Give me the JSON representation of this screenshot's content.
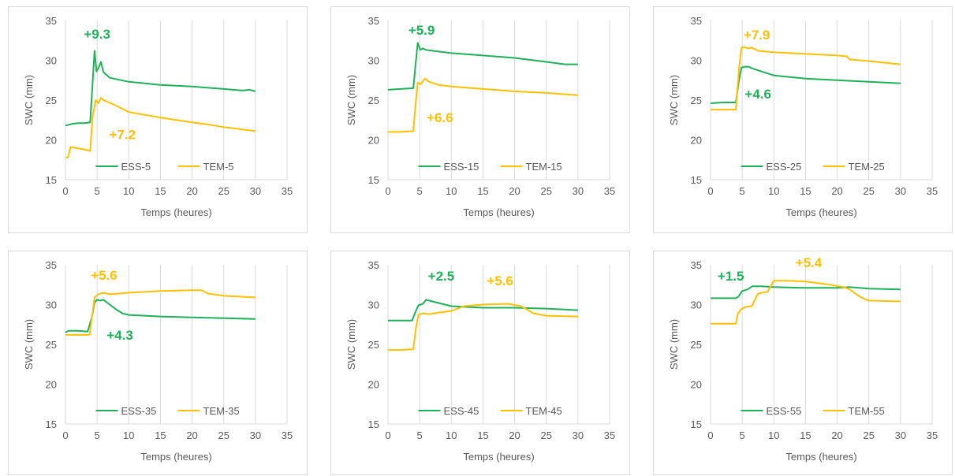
{
  "colors": {
    "ess": "#1fb15a",
    "tem": "#ffc000"
  },
  "chart_data": [
    {
      "type": "line",
      "xlabel": "Temps (heures)",
      "ylabel": "SWC (mm)",
      "xlim": [
        0,
        35
      ],
      "ylim": [
        15,
        35
      ],
      "xticks": [
        "0",
        "5",
        "10",
        "15",
        "20",
        "25",
        "30",
        "35"
      ],
      "yticks": [
        "15",
        "20",
        "25",
        "30",
        "35"
      ],
      "grid": "vertical",
      "legend": "bottom-center",
      "series": [
        {
          "name": "ESS-5",
          "color": "#1fb15a",
          "x": [
            0,
            1,
            2,
            3,
            3.9,
            4.2,
            4.6,
            4.9,
            5.2,
            5.6,
            6,
            7,
            10,
            15,
            20,
            25,
            28,
            29,
            30
          ],
          "y": [
            21.8,
            22,
            22.1,
            22.1,
            22.2,
            26,
            31.2,
            28.6,
            29,
            29.8,
            28.5,
            27.8,
            27.3,
            26.9,
            26.7,
            26.4,
            26.2,
            26.3,
            26.1
          ]
        },
        {
          "name": "TEM-5",
          "color": "#ffc000",
          "x": [
            0,
            0.4,
            0.8,
            1.5,
            3,
            3.9,
            4.3,
            4.8,
            5.2,
            5.6,
            6,
            8,
            10,
            15,
            20,
            22,
            25,
            30
          ],
          "y": [
            17.8,
            17.8,
            19.1,
            19,
            18.8,
            18.6,
            23,
            25,
            24.6,
            25.3,
            25,
            24.3,
            23.5,
            22.8,
            22.2,
            22,
            21.6,
            21.1
          ]
        }
      ],
      "annotations": [
        {
          "text": "+9.3",
          "series": "ESS-5",
          "x": 5,
          "y": 33.3
        },
        {
          "text": "+7.2",
          "series": "TEM-5",
          "x": 9,
          "y": 20.7
        }
      ]
    },
    {
      "type": "line",
      "xlabel": "Temps (heures)",
      "ylabel": "SWC (mm)",
      "xlim": [
        0,
        35
      ],
      "ylim": [
        15,
        35
      ],
      "xticks": [
        "0",
        "5",
        "10",
        "15",
        "20",
        "25",
        "30",
        "35"
      ],
      "yticks": [
        "15",
        "20",
        "25",
        "30",
        "35"
      ],
      "grid": "vertical",
      "legend": "bottom-center",
      "series": [
        {
          "name": "ESS-15",
          "color": "#1fb15a",
          "x": [
            0,
            2,
            4,
            4.3,
            4.7,
            5.1,
            5.5,
            6,
            8,
            10,
            15,
            20,
            25,
            28,
            30
          ],
          "y": [
            26.3,
            26.4,
            26.5,
            29,
            32.2,
            31.3,
            31.5,
            31.3,
            31.1,
            30.9,
            30.6,
            30.3,
            29.8,
            29.5,
            29.5
          ]
        },
        {
          "name": "TEM-15",
          "color": "#ffc000",
          "x": [
            0,
            2,
            4,
            4.3,
            4.7,
            5.2,
            5.8,
            6.5,
            8,
            10,
            15,
            20,
            25,
            30
          ],
          "y": [
            21,
            21,
            21.1,
            24,
            27.2,
            27,
            27.7,
            27.3,
            26.9,
            26.7,
            26.4,
            26.1,
            25.9,
            25.6
          ]
        }
      ],
      "annotations": [
        {
          "text": "+5.9",
          "series": "ESS-15",
          "x": 5.3,
          "y": 33.8
        },
        {
          "text": "+6.6",
          "series": "TEM-15",
          "x": 8.2,
          "y": 22.8
        }
      ]
    },
    {
      "type": "line",
      "xlabel": "Temps (heures)",
      "ylabel": "SWC (mm)",
      "xlim": [
        0,
        35
      ],
      "ylim": [
        15,
        35
      ],
      "xticks": [
        "0",
        "5",
        "10",
        "15",
        "20",
        "25",
        "30",
        "35"
      ],
      "yticks": [
        "15",
        "20",
        "25",
        "30",
        "35"
      ],
      "grid": "vertical",
      "legend": "bottom-center",
      "series": [
        {
          "name": "ESS-25",
          "color": "#1fb15a",
          "x": [
            0,
            2,
            4,
            4.5,
            4.9,
            5.5,
            6,
            6.5,
            8,
            10,
            15,
            20,
            25,
            30
          ],
          "y": [
            24.6,
            24.7,
            24.7,
            27.5,
            29.1,
            29.2,
            29.2,
            29,
            28.6,
            28.1,
            27.7,
            27.5,
            27.3,
            27.1
          ]
        },
        {
          "name": "TEM-25",
          "color": "#ffc000",
          "x": [
            0,
            2,
            4,
            4.5,
            4.9,
            5.5,
            6,
            6.5,
            7.5,
            10,
            15,
            20,
            21.5,
            22,
            25,
            30
          ],
          "y": [
            23.8,
            23.8,
            23.8,
            29,
            31.6,
            31.6,
            31.5,
            31.6,
            31.2,
            31,
            30.8,
            30.6,
            30.5,
            30.1,
            29.9,
            29.5
          ]
        }
      ],
      "annotations": [
        {
          "text": "+7.9",
          "series": "TEM-25",
          "x": 7.3,
          "y": 33.2
        },
        {
          "text": "+4.6",
          "series": "ESS-25",
          "x": 7.5,
          "y": 25.8
        }
      ]
    },
    {
      "type": "line",
      "xlabel": "Temps (heures)",
      "ylabel": "SWC (mm)",
      "xlim": [
        0,
        35
      ],
      "ylim": [
        15,
        35
      ],
      "xticks": [
        "0",
        "5",
        "10",
        "15",
        "20",
        "25",
        "30",
        "35"
      ],
      "yticks": [
        "15",
        "20",
        "25",
        "30",
        "35"
      ],
      "grid": "vertical",
      "legend": "bottom-center",
      "series": [
        {
          "name": "ESS-35",
          "color": "#1fb15a",
          "x": [
            0,
            0.5,
            2,
            3.5,
            4.2,
            4.6,
            5,
            5.5,
            6,
            6.5,
            8,
            9,
            10,
            15,
            20,
            25,
            30
          ],
          "y": [
            26.5,
            26.7,
            26.7,
            26.6,
            28.5,
            30.3,
            30.6,
            30.5,
            30.6,
            30.3,
            29.4,
            28.9,
            28.7,
            28.5,
            28.4,
            28.3,
            28.2
          ]
        },
        {
          "name": "TEM-35",
          "color": "#ffc000",
          "x": [
            0,
            2,
            3.8,
            4.2,
            4.6,
            5.2,
            6,
            7,
            10,
            15,
            20,
            21.5,
            22.5,
            25,
            30
          ],
          "y": [
            26.2,
            26.2,
            26.2,
            28.5,
            30.9,
            31.3,
            31.5,
            31.3,
            31.5,
            31.7,
            31.8,
            31.8,
            31.4,
            31.1,
            30.9
          ]
        }
      ],
      "annotations": [
        {
          "text": "+5.6",
          "series": "TEM-35",
          "x": 6.1,
          "y": 33.7
        },
        {
          "text": "+4.3",
          "series": "ESS-35",
          "x": 8.6,
          "y": 26.2
        }
      ]
    },
    {
      "type": "line",
      "xlabel": "Temps (heures)",
      "ylabel": "SWC (mm)",
      "xlim": [
        0,
        35
      ],
      "ylim": [
        15,
        35
      ],
      "xticks": [
        "0",
        "5",
        "10",
        "15",
        "20",
        "25",
        "30",
        "35"
      ],
      "yticks": [
        "15",
        "20",
        "25",
        "30",
        "35"
      ],
      "grid": "vertical",
      "legend": "bottom-center",
      "series": [
        {
          "name": "ESS-45",
          "color": "#1fb15a",
          "x": [
            0,
            2,
            3.8,
            4.3,
            4.8,
            5.5,
            6,
            7,
            10,
            15,
            20,
            25,
            30
          ],
          "y": [
            28,
            28,
            28,
            29,
            29.9,
            30.1,
            30.6,
            30.4,
            29.8,
            29.6,
            29.6,
            29.5,
            29.3
          ]
        },
        {
          "name": "TEM-45",
          "color": "#ffc000",
          "x": [
            0,
            2,
            4,
            4.4,
            4.8,
            5.5,
            6.5,
            8,
            10,
            12,
            15,
            19,
            21,
            23,
            25,
            30
          ],
          "y": [
            24.3,
            24.3,
            24.4,
            27,
            28.7,
            28.9,
            28.8,
            29,
            29.2,
            29.8,
            30,
            30.1,
            29.8,
            28.9,
            28.6,
            28.5
          ]
        }
      ],
      "annotations": [
        {
          "text": "+2.5",
          "series": "ESS-45",
          "x": 8.4,
          "y": 33.6
        },
        {
          "text": "+5.6",
          "series": "TEM-45",
          "x": 17.7,
          "y": 33
        }
      ]
    },
    {
      "type": "line",
      "xlabel": "Temps (heures)",
      "ylabel": "SWC (mm)",
      "xlim": [
        0,
        35
      ],
      "ylim": [
        15,
        35
      ],
      "xticks": [
        "0",
        "5",
        "10",
        "15",
        "20",
        "25",
        "30",
        "35"
      ],
      "yticks": [
        "15",
        "20",
        "25",
        "30",
        "35"
      ],
      "grid": "vertical",
      "legend": "bottom-center",
      "series": [
        {
          "name": "ESS-55",
          "color": "#1fb15a",
          "x": [
            0,
            2,
            4,
            4.4,
            5,
            5.8,
            6.6,
            8,
            10,
            15,
            20,
            22,
            25,
            30
          ],
          "y": [
            30.8,
            30.8,
            30.8,
            31,
            31.7,
            31.9,
            32.3,
            32.3,
            32.2,
            32.1,
            32.1,
            32.2,
            32,
            31.9
          ]
        },
        {
          "name": "TEM-55",
          "color": "#ffc000",
          "x": [
            0,
            2,
            4,
            4.3,
            4.8,
            5.5,
            6.5,
            7.5,
            9,
            10,
            12,
            15,
            18,
            21,
            22,
            23,
            24,
            25,
            30
          ],
          "y": [
            27.6,
            27.6,
            27.6,
            28.8,
            29.4,
            29.7,
            29.8,
            31.4,
            31.6,
            33,
            33,
            32.9,
            32.6,
            32.2,
            31.9,
            31.3,
            30.8,
            30.5,
            30.4
          ]
        }
      ],
      "annotations": [
        {
          "text": "+1.5",
          "series": "ESS-55",
          "x": 3.2,
          "y": 33.6
        },
        {
          "text": "+5.4",
          "series": "TEM-55",
          "x": 15.5,
          "y": 35.3
        }
      ]
    }
  ]
}
